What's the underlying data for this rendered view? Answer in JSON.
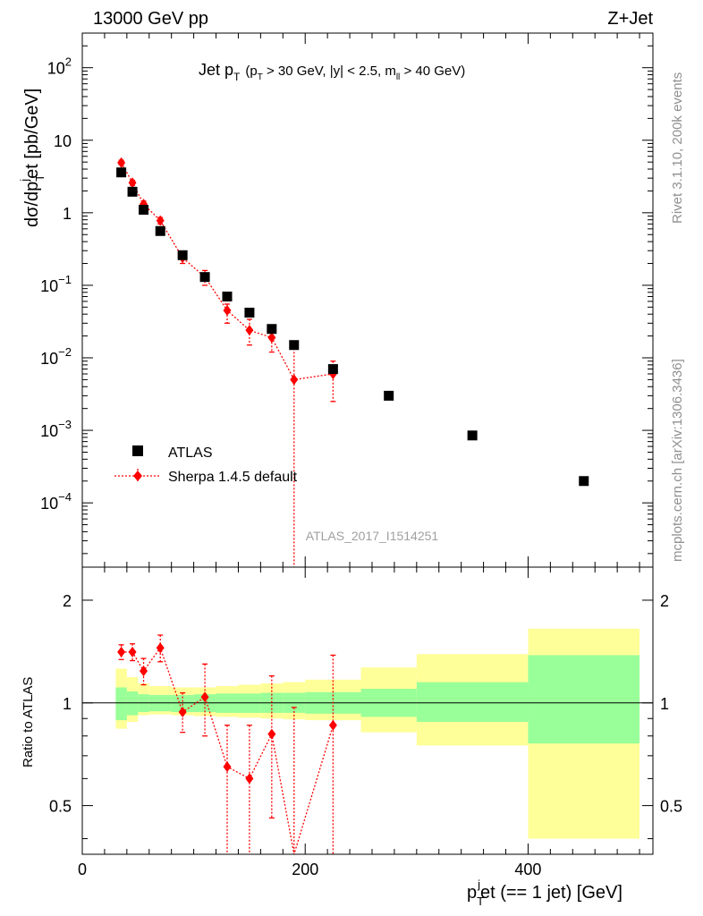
{
  "header": {
    "beam": "13000 GeV pp",
    "process": "Z+Jet"
  },
  "side_text": {
    "rivet": "Rivet 3.1.10,  200k events",
    "site": "mcplots.cern.ch [arXiv:1306.3436]"
  },
  "watermark": "ATLAS_2017_I1514251",
  "colors": {
    "data": "#000000",
    "mc": "#ff0000",
    "band_inner": "#99ff99",
    "band_outer": "#ffff99"
  },
  "chart_data": [
    {
      "type": "scatter",
      "scale": "log",
      "title": {
        "main": "Jet p",
        "main_sub": "T",
        "cut_a": "(p",
        "cut_a_sub": "T",
        "cut_b": " > 30 GeV, |y| < 2.5, m",
        "cut_b_sub": "ll",
        "cut_c": " > 40 GeV)"
      },
      "ylabel": {
        "a": "dσ/dp",
        "a_sub": "T",
        "a_sup": "j",
        "b": "et [pb/GeV]"
      },
      "xlim": [
        0,
        512
      ],
      "ylim": [
        1.3e-05,
        300
      ],
      "y_ticks": [
        {
          "value": 100,
          "label": "10",
          "sup": "2"
        },
        {
          "value": 10,
          "label": "10",
          "sup": ""
        },
        {
          "value": 1,
          "label": "1",
          "sup": ""
        },
        {
          "value": 0.1,
          "label": "10",
          "sup": "−1"
        },
        {
          "value": 0.01,
          "label": "10",
          "sup": "−2"
        },
        {
          "value": 0.001,
          "label": "10",
          "sup": "−3"
        },
        {
          "value": 0.0001,
          "label": "10",
          "sup": "−4"
        }
      ],
      "legend": {
        "position": "lower-left",
        "items": [
          {
            "label": "ATLAS",
            "marker": "square"
          },
          {
            "label": "Sherpa 1.4.5 default",
            "marker": "diamond"
          }
        ]
      },
      "series": [
        {
          "name": "ATLAS",
          "x": [
            35,
            45,
            55,
            70,
            90,
            110,
            130,
            150,
            170,
            190,
            225,
            275,
            350,
            450
          ],
          "y": [
            3.6,
            1.95,
            1.1,
            0.56,
            0.26,
            0.13,
            0.07,
            0.042,
            0.025,
            0.015,
            0.007,
            0.003,
            0.00085,
            0.0002
          ]
        },
        {
          "name": "Sherpa 1.4.5 default",
          "x": [
            35,
            45,
            55,
            70,
            90,
            110,
            130,
            150,
            170,
            190,
            225
          ],
          "y": [
            4.9,
            2.6,
            1.32,
            0.78,
            0.24,
            0.13,
            0.045,
            0.024,
            0.019,
            0.005,
            0.006
          ],
          "y_low": [
            4.6,
            2.4,
            1.2,
            0.7,
            0.2,
            0.1,
            0.03,
            0.015,
            0.012,
            1e-06,
            0.0025
          ],
          "y_high": [
            5.3,
            2.8,
            1.45,
            0.86,
            0.29,
            0.16,
            0.055,
            0.034,
            0.026,
            0.017,
            0.009
          ]
        }
      ]
    },
    {
      "type": "scatter",
      "scale": "log",
      "ylabel": "Ratio to ATLAS",
      "xlabel": {
        "a": "p",
        "a_sub": "T",
        "a_sup": "j",
        "b": "et (== 1 jet) [GeV]"
      },
      "xlim": [
        0,
        512
      ],
      "ylim": [
        0.36,
        2.5
      ],
      "x_ticks": [
        0,
        200,
        400
      ],
      "y_ticks": [
        0.5,
        1,
        2
      ],
      "reference": 1,
      "bands": {
        "edges": [
          30,
          40,
          50,
          60,
          80,
          100,
          120,
          140,
          160,
          180,
          200,
          250,
          300,
          400,
          500
        ],
        "inner_low": [
          0.89,
          0.92,
          0.94,
          0.945,
          0.94,
          0.94,
          0.935,
          0.935,
          0.935,
          0.935,
          0.93,
          0.91,
          0.88,
          0.76
        ],
        "inner_high": [
          1.11,
          1.08,
          1.06,
          1.055,
          1.055,
          1.06,
          1.065,
          1.065,
          1.07,
          1.07,
          1.075,
          1.1,
          1.15,
          1.38
        ],
        "outer_low": [
          0.84,
          0.88,
          0.92,
          0.925,
          0.92,
          0.915,
          0.91,
          0.905,
          0.9,
          0.895,
          0.89,
          0.82,
          0.75,
          0.4
        ],
        "outer_high": [
          1.26,
          1.19,
          1.14,
          1.12,
          1.11,
          1.11,
          1.12,
          1.13,
          1.14,
          1.15,
          1.17,
          1.27,
          1.39,
          1.65
        ]
      },
      "series": [
        {
          "name": "Sherpa 1.4.5 default",
          "x": [
            35,
            45,
            55,
            70,
            90,
            110,
            130,
            150,
            170,
            190,
            225
          ],
          "y": [
            1.41,
            1.41,
            1.24,
            1.45,
            0.94,
            1.04,
            0.65,
            0.6,
            0.81,
            0.33,
            0.86
          ],
          "y_low": [
            1.34,
            1.33,
            1.13,
            1.32,
            0.82,
            0.8,
            0.36,
            0.36,
            0.46,
            0.001,
            0.36
          ],
          "y_high": [
            1.48,
            1.49,
            1.35,
            1.58,
            1.07,
            1.3,
            0.86,
            0.86,
            1.2,
            0.97,
            1.38
          ]
        }
      ]
    }
  ]
}
